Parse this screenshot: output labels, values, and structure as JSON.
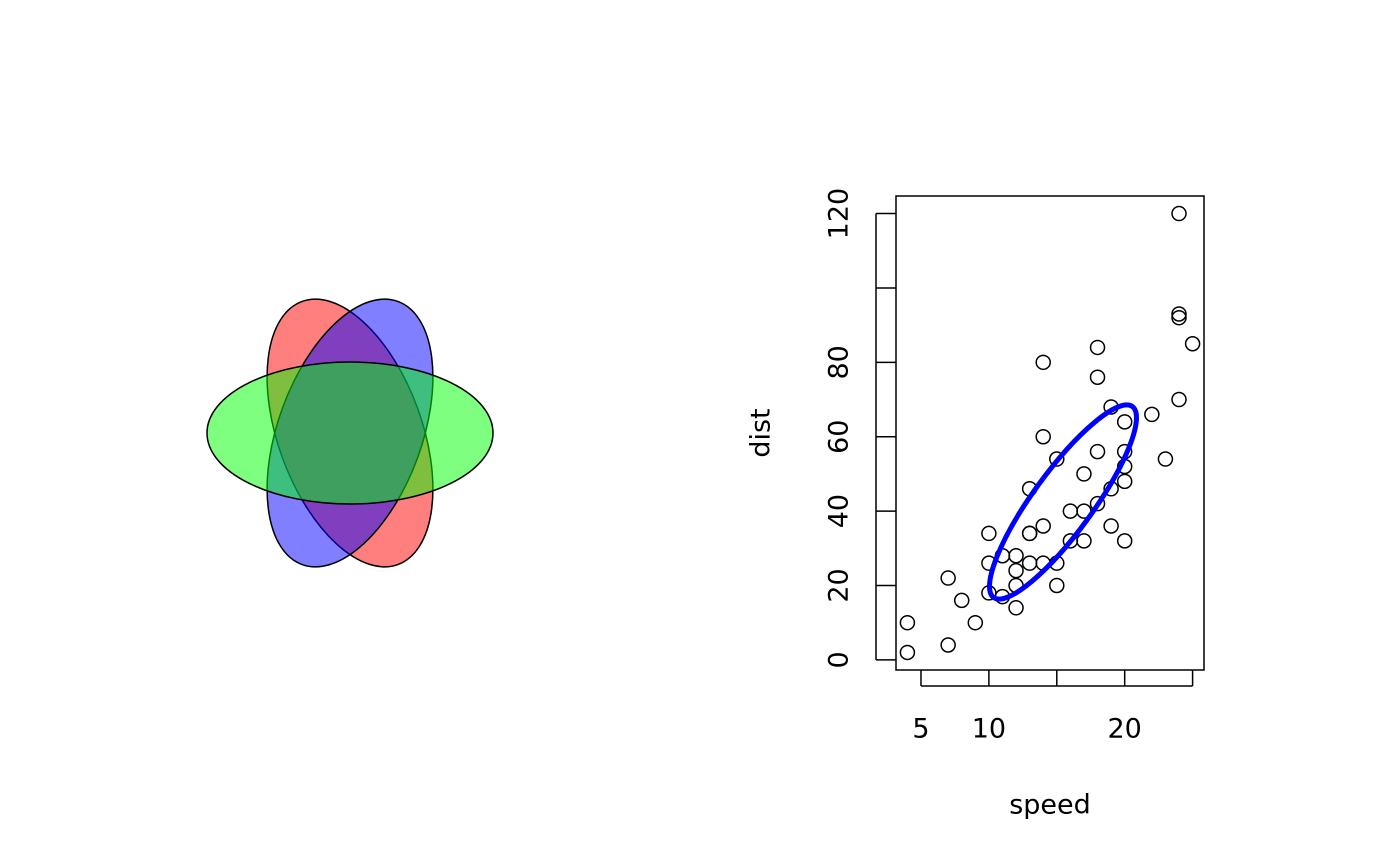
{
  "chart_data": [
    {
      "type": "ellipses",
      "colors": [
        "#ff000080",
        "#0000ff80",
        "#00ff0080"
      ]
    },
    {
      "type": "scatter",
      "xlabel": "speed",
      "ylabel": "dist",
      "x": [
        4,
        4,
        7,
        7,
        8,
        9,
        10,
        10,
        10,
        11,
        11,
        12,
        12,
        12,
        12,
        13,
        13,
        13,
        13,
        14,
        14,
        14,
        14,
        15,
        15,
        15,
        16,
        16,
        17,
        17,
        17,
        18,
        18,
        18,
        18,
        19,
        19,
        19,
        20,
        20,
        20,
        20,
        20,
        22,
        23,
        24,
        24,
        24,
        24,
        25
      ],
      "y": [
        2,
        10,
        4,
        22,
        16,
        10,
        18,
        26,
        34,
        17,
        28,
        14,
        20,
        24,
        28,
        26,
        34,
        34,
        46,
        26,
        36,
        60,
        80,
        20,
        26,
        54,
        32,
        40,
        32,
        40,
        50,
        42,
        56,
        76,
        84,
        36,
        46,
        68,
        32,
        48,
        52,
        56,
        64,
        66,
        54,
        70,
        92,
        93,
        120,
        85
      ],
      "xlim": [
        3.16,
        25.84
      ],
      "ylim": [
        -2.72,
        124.72
      ],
      "xticks": [
        5,
        10,
        {
          "value": 15,
          "label": null
        },
        20,
        {
          "value": 25,
          "label": null
        }
      ],
      "yticks": [
        0,
        20,
        40,
        60,
        80,
        {
          "value": 100,
          "label": null
        },
        120
      ],
      "ellipse_color": "#0000ff"
    }
  ]
}
